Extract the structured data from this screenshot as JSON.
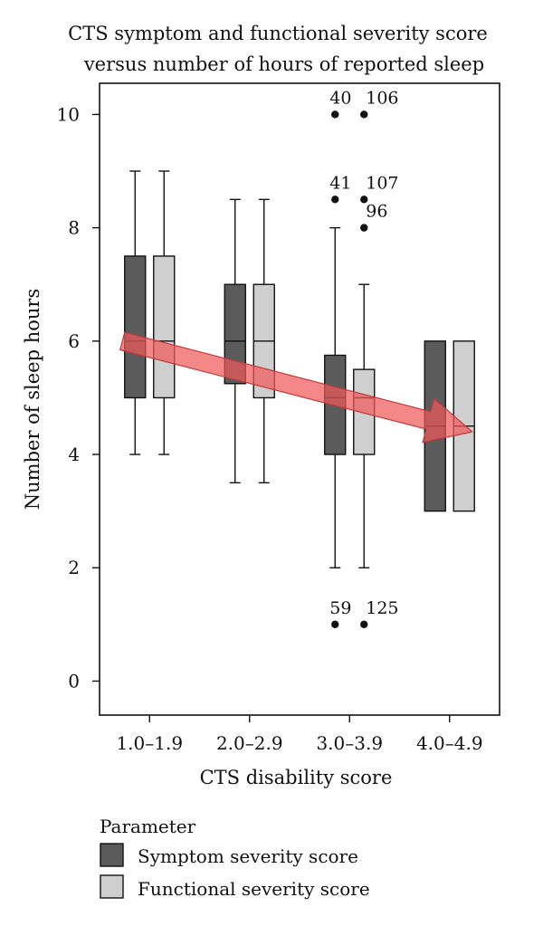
{
  "colors": {
    "symptom": "#5b5b5b",
    "functional": "#cfcfcf",
    "arrow_fill": "#f05a5a",
    "arrow_stroke": "#c43a3a",
    "axis": "#111111"
  },
  "chart_data": {
    "type": "box",
    "title_lines": [
      "CTS symptom and functional severity score",
      "versus number of hours of reported sleep"
    ],
    "xlabel": "CTS disability score",
    "ylabel": "Number of sleep hours",
    "ylim": [
      -0.6,
      10.55
    ],
    "yticks": [
      0,
      2,
      4,
      6,
      8,
      10
    ],
    "categories": [
      "1.0–1.9",
      "2.0–2.9",
      "3.0–3.9",
      "4.0–4.9"
    ],
    "series": [
      {
        "name": "Symptom severity score",
        "boxes": [
          {
            "min": 4,
            "q1": 5,
            "median": 6,
            "q3": 7.5,
            "max": 9
          },
          {
            "min": 3.5,
            "q1": 5.25,
            "median": 6,
            "q3": 7,
            "max": 8.5
          },
          {
            "min": 2,
            "q1": 4,
            "median": 5,
            "q3": 5.75,
            "max": 8
          },
          {
            "min": 3,
            "q1": 3,
            "median": 4.5,
            "q3": 6,
            "max": 6
          }
        ]
      },
      {
        "name": "Functional severity score",
        "boxes": [
          {
            "min": 4,
            "q1": 5,
            "median": 6,
            "q3": 7.5,
            "max": 9
          },
          {
            "min": 3.5,
            "q1": 5,
            "median": 6,
            "q3": 7,
            "max": 8.5
          },
          {
            "min": 2,
            "q1": 4,
            "median": 5,
            "q3": 5.5,
            "max": 7
          },
          {
            "min": 3,
            "q1": 3,
            "median": 4.5,
            "q3": 6,
            "max": 6
          }
        ]
      }
    ],
    "outliers": [
      {
        "category": "3.0–3.9",
        "series": 0,
        "y": 10,
        "label": "40"
      },
      {
        "category": "3.0–3.9",
        "series": 1,
        "y": 10,
        "label": "106"
      },
      {
        "category": "3.0–3.9",
        "series": 0,
        "y": 8.5,
        "label": "41"
      },
      {
        "category": "3.0–3.9",
        "series": 1,
        "y": 8.5,
        "label": "107"
      },
      {
        "category": "3.0–3.9",
        "series": 1,
        "y": 8,
        "label": "96"
      },
      {
        "category": "3.0–3.9",
        "series": 0,
        "y": 1,
        "label": "59"
      },
      {
        "category": "3.0–3.9",
        "series": 1,
        "y": 1,
        "label": "125"
      }
    ],
    "trend_arrow": {
      "from": {
        "category": "1.0–1.9",
        "y": 6.0
      },
      "to": {
        "category": "4.0–4.9",
        "y": 4.4
      }
    },
    "legend": {
      "title": "Parameter",
      "position": "bottom-left",
      "entries": [
        "Symptom severity score",
        "Functional severity score"
      ]
    },
    "grid": false
  }
}
